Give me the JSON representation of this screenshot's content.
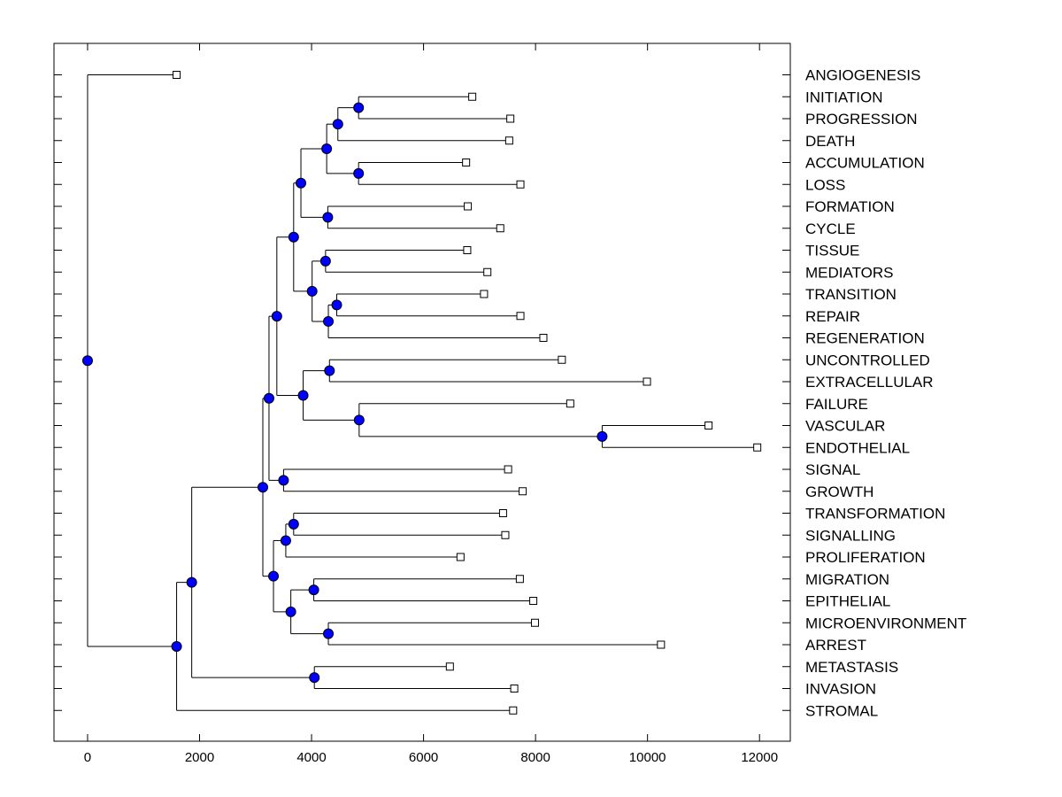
{
  "chart_data": {
    "type": "dendrogram",
    "title": "",
    "xlabel": "",
    "ylabel": "",
    "xlim": [
      -600,
      12550
    ],
    "x_ticks": [
      0,
      2000,
      4000,
      6000,
      8000,
      10000,
      12000
    ],
    "x_tick_labels": [
      "0",
      "2000",
      "4000",
      "6000",
      "8000",
      "10000",
      "12000"
    ],
    "grid": false,
    "leaves": [
      {
        "label": "ANGIOGENESIS",
        "x": 1590
      },
      {
        "label": "INITIATION",
        "x": 6870
      },
      {
        "label": "PROGRESSION",
        "x": 7550
      },
      {
        "label": "DEATH",
        "x": 7530
      },
      {
        "label": "ACCUMULATION",
        "x": 6760
      },
      {
        "label": "LOSS",
        "x": 7730
      },
      {
        "label": "FORMATION",
        "x": 6790
      },
      {
        "label": "CYCLE",
        "x": 7370
      },
      {
        "label": "TISSUE",
        "x": 6780
      },
      {
        "label": "MEDIATORS",
        "x": 7140
      },
      {
        "label": "TRANSITION",
        "x": 7080
      },
      {
        "label": "REPAIR",
        "x": 7730
      },
      {
        "label": "REGENERATION",
        "x": 8140
      },
      {
        "label": "UNCONTROLLED",
        "x": 8470
      },
      {
        "label": "EXTRACELLULAR",
        "x": 9990
      },
      {
        "label": "FAILURE",
        "x": 8620
      },
      {
        "label": "VASCULAR",
        "x": 11090
      },
      {
        "label": "ENDOTHELIAL",
        "x": 11960
      },
      {
        "label": "SIGNAL",
        "x": 7510
      },
      {
        "label": "GROWTH",
        "x": 7770
      },
      {
        "label": "TRANSFORMATION",
        "x": 7420
      },
      {
        "label": "SIGNALLING",
        "x": 7460
      },
      {
        "label": "PROLIFERATION",
        "x": 6660
      },
      {
        "label": "MIGRATION",
        "x": 7720
      },
      {
        "label": "EPITHELIAL",
        "x": 7960
      },
      {
        "label": "MICROENVIRONMENT",
        "x": 7990
      },
      {
        "label": "ARREST",
        "x": 10240
      },
      {
        "label": "METASTASIS",
        "x": 6470
      },
      {
        "label": "INVASION",
        "x": 7620
      },
      {
        "label": "STROMAL",
        "x": 7600
      }
    ],
    "merges": [
      {
        "id": "n1",
        "x": 4840,
        "children": [
          "INITIATION",
          "PROGRESSION"
        ]
      },
      {
        "id": "n2",
        "x": 4470,
        "children": [
          "n1",
          "DEATH"
        ]
      },
      {
        "id": "n3",
        "x": 4840,
        "children": [
          "ACCUMULATION",
          "LOSS"
        ]
      },
      {
        "id": "n4",
        "x": 4270,
        "children": [
          "n2",
          "n3"
        ]
      },
      {
        "id": "n5",
        "x": 4290,
        "children": [
          "FORMATION",
          "CYCLE"
        ]
      },
      {
        "id": "n6",
        "x": 3810,
        "children": [
          "n4",
          "n5"
        ]
      },
      {
        "id": "n7",
        "x": 4250,
        "children": [
          "TISSUE",
          "MEDIATORS"
        ]
      },
      {
        "id": "n8",
        "x": 4450,
        "children": [
          "TRANSITION",
          "REPAIR"
        ]
      },
      {
        "id": "n9",
        "x": 4300,
        "children": [
          "n8",
          "REGENERATION"
        ]
      },
      {
        "id": "n10",
        "x": 4010,
        "children": [
          "n7",
          "n9"
        ]
      },
      {
        "id": "n11",
        "x": 3680,
        "children": [
          "n6",
          "n10"
        ]
      },
      {
        "id": "n12",
        "x": 4320,
        "children": [
          "UNCONTROLLED",
          "EXTRACELLULAR"
        ]
      },
      {
        "id": "n13",
        "x": 9190,
        "children": [
          "VASCULAR",
          "ENDOTHELIAL"
        ]
      },
      {
        "id": "n14",
        "x": 4850,
        "children": [
          "FAILURE",
          "n13"
        ]
      },
      {
        "id": "n15",
        "x": 3850,
        "children": [
          "n12",
          "n14"
        ]
      },
      {
        "id": "n16",
        "x": 3380,
        "children": [
          "n11",
          "n15"
        ]
      },
      {
        "id": "n17",
        "x": 3500,
        "children": [
          "SIGNAL",
          "GROWTH"
        ]
      },
      {
        "id": "n18",
        "x": 3240,
        "children": [
          "n16",
          "n17"
        ]
      },
      {
        "id": "n19",
        "x": 3680,
        "children": [
          "TRANSFORMATION",
          "SIGNALLING"
        ]
      },
      {
        "id": "n20",
        "x": 3540,
        "children": [
          "n19",
          "PROLIFERATION"
        ]
      },
      {
        "id": "n21",
        "x": 4040,
        "children": [
          "MIGRATION",
          "EPITHELIAL"
        ]
      },
      {
        "id": "n22",
        "x": 4300,
        "children": [
          "MICROENVIRONMENT",
          "ARREST"
        ]
      },
      {
        "id": "n23",
        "x": 3630,
        "children": [
          "n21",
          "n22"
        ]
      },
      {
        "id": "n24",
        "x": 3320,
        "children": [
          "n20",
          "n23"
        ]
      },
      {
        "id": "n25",
        "x": 3130,
        "children": [
          "n18",
          "n24"
        ]
      },
      {
        "id": "n26",
        "x": 4050,
        "children": [
          "METASTASIS",
          "INVASION"
        ]
      },
      {
        "id": "n27",
        "x": 1860,
        "children": [
          "n25",
          "n26"
        ]
      },
      {
        "id": "n28",
        "x": 1590,
        "children": [
          "n27",
          "STROMAL"
        ]
      },
      {
        "id": "n29",
        "x": 0,
        "children": [
          "ANGIOGENESIS",
          "n28"
        ]
      }
    ]
  },
  "colors": {
    "node_fill": "#0000ff",
    "line": "#000000",
    "leaf_marker_fill": "#ffffff",
    "background": "#ffffff"
  }
}
